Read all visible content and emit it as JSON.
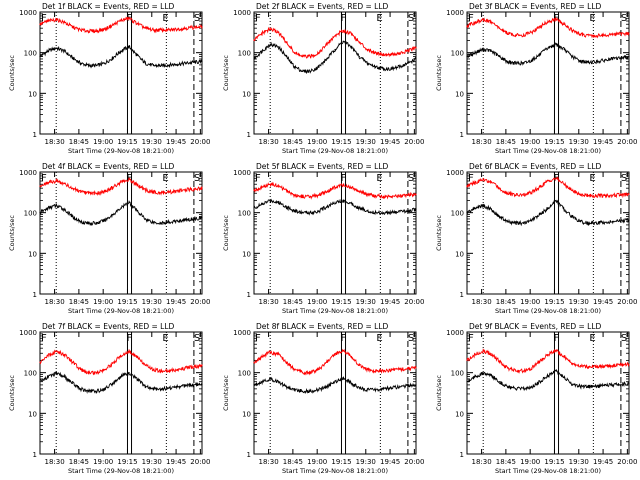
{
  "colors": {
    "events": "#000000",
    "lld": "#ff0000",
    "background": "#ffffff",
    "axes": "#000000"
  },
  "common": {
    "ylabel": "Counts/sec",
    "xlabel": "Start Time (29-Nov-08 18:21:00)",
    "x_tick_labels": [
      "18:30",
      "18:45",
      "19:00",
      "19:15",
      "19:30",
      "19:45",
      "20:00"
    ],
    "y_tick_labels": [
      "1",
      "10",
      "100",
      "1000"
    ],
    "marker_labels": {
      "first": "F",
      "second": "E",
      "third": "S"
    }
  },
  "chart_data": [
    {
      "type": "line",
      "title": "Det 1f BLACK = Events, RED = LLD",
      "x_unit": "minutes after 18:21:00",
      "xlim": [
        0,
        100
      ],
      "ylim": [
        1,
        1000
      ],
      "yscale": "log",
      "vertical_lines": {
        "dotted": [
          10,
          78
        ],
        "solid_pair": [
          54,
          56.5
        ],
        "dashed": 95
      },
      "x": [
        0,
        5,
        10,
        15,
        20,
        25,
        30,
        35,
        40,
        45,
        50,
        55,
        60,
        65,
        70,
        75,
        80,
        85,
        90,
        95,
        100
      ],
      "series": [
        {
          "name": "Events",
          "color": "#000000",
          "values": [
            80,
            110,
            130,
            110,
            75,
            55,
            48,
            48,
            55,
            75,
            110,
            140,
            85,
            55,
            48,
            48,
            50,
            52,
            55,
            58,
            60
          ]
        },
        {
          "name": "LLD",
          "color": "#ff0000",
          "values": [
            500,
            600,
            650,
            560,
            430,
            360,
            340,
            340,
            380,
            480,
            620,
            700,
            520,
            400,
            360,
            360,
            360,
            380,
            400,
            420,
            430
          ]
        }
      ]
    },
    {
      "type": "line",
      "title": "Det 2f BLACK = Events, RED = LLD",
      "x_unit": "minutes after 18:21:00",
      "xlim": [
        0,
        100
      ],
      "ylim": [
        1,
        1000
      ],
      "yscale": "log",
      "vertical_lines": {
        "dotted": [
          10,
          78
        ],
        "solid_pair": [
          54,
          56.5
        ],
        "dashed": 95
      },
      "x": [
        0,
        5,
        10,
        15,
        20,
        25,
        30,
        35,
        40,
        45,
        50,
        55,
        60,
        65,
        70,
        75,
        80,
        85,
        90,
        95,
        100
      ],
      "series": [
        {
          "name": "Events",
          "color": "#000000",
          "values": [
            70,
            110,
            160,
            140,
            80,
            45,
            35,
            35,
            45,
            70,
            120,
            190,
            140,
            80,
            55,
            45,
            40,
            40,
            45,
            55,
            70
          ]
        },
        {
          "name": "LLD",
          "color": "#ff0000",
          "values": [
            200,
            300,
            380,
            320,
            180,
            100,
            80,
            80,
            100,
            160,
            260,
            350,
            300,
            180,
            120,
            100,
            90,
            90,
            95,
            110,
            130
          ]
        }
      ]
    },
    {
      "type": "line",
      "title": "Det 3f BLACK = Events, RED = LLD",
      "x_unit": "minutes after 18:21:00",
      "xlim": [
        0,
        100
      ],
      "ylim": [
        1,
        1000
      ],
      "yscale": "log",
      "vertical_lines": {
        "dotted": [
          10,
          78
        ],
        "solid_pair": [
          54,
          56.5
        ],
        "dashed": 95
      },
      "x": [
        0,
        5,
        10,
        15,
        20,
        25,
        30,
        35,
        40,
        45,
        50,
        55,
        60,
        65,
        70,
        75,
        80,
        85,
        90,
        95,
        100
      ],
      "series": [
        {
          "name": "Events",
          "color": "#000000",
          "values": [
            80,
            100,
            120,
            110,
            80,
            60,
            55,
            55,
            65,
            90,
            130,
            160,
            120,
            80,
            62,
            58,
            60,
            65,
            70,
            75,
            80
          ]
        },
        {
          "name": "LLD",
          "color": "#ff0000",
          "values": [
            450,
            550,
            650,
            560,
            400,
            300,
            270,
            270,
            320,
            430,
            580,
            650,
            500,
            350,
            280,
            260,
            260,
            270,
            280,
            290,
            300
          ]
        }
      ]
    },
    {
      "type": "line",
      "title": "Det 4f BLACK = Events, RED = LLD",
      "x_unit": "minutes after 18:21:00",
      "xlim": [
        0,
        100
      ],
      "ylim": [
        1,
        1000
      ],
      "yscale": "log",
      "vertical_lines": {
        "dotted": [
          10,
          78
        ],
        "solid_pair": [
          54,
          56.5
        ],
        "dashed": 95
      },
      "x": [
        0,
        5,
        10,
        15,
        20,
        25,
        30,
        35,
        40,
        45,
        50,
        55,
        60,
        65,
        70,
        75,
        80,
        85,
        90,
        95,
        100
      ],
      "series": [
        {
          "name": "Events",
          "color": "#000000",
          "values": [
            100,
            130,
            150,
            120,
            80,
            60,
            55,
            55,
            65,
            90,
            130,
            180,
            110,
            70,
            58,
            55,
            58,
            62,
            66,
            70,
            75
          ]
        },
        {
          "name": "LLD",
          "color": "#ff0000",
          "values": [
            450,
            550,
            600,
            520,
            400,
            320,
            300,
            300,
            330,
            420,
            560,
            650,
            480,
            360,
            320,
            310,
            320,
            340,
            360,
            380,
            400
          ]
        }
      ]
    },
    {
      "type": "line",
      "title": "Det 5f BLACK = Events, RED = LLD",
      "x_unit": "minutes after 18:21:00",
      "xlim": [
        0,
        100
      ],
      "ylim": [
        1,
        1000
      ],
      "yscale": "log",
      "vertical_lines": {
        "dotted": [
          10,
          78
        ],
        "solid_pair": [
          54,
          56.5
        ],
        "dashed": 95
      },
      "x": [
        0,
        5,
        10,
        15,
        20,
        25,
        30,
        35,
        40,
        45,
        50,
        55,
        60,
        65,
        70,
        75,
        80,
        85,
        90,
        95,
        100
      ],
      "series": [
        {
          "name": "Events",
          "color": "#000000",
          "values": [
            130,
            160,
            200,
            180,
            140,
            110,
            100,
            100,
            110,
            140,
            180,
            200,
            170,
            130,
            110,
            100,
            100,
            100,
            105,
            110,
            120
          ]
        },
        {
          "name": "LLD",
          "color": "#ff0000",
          "values": [
            350,
            420,
            500,
            450,
            350,
            270,
            250,
            250,
            270,
            330,
            420,
            480,
            420,
            330,
            280,
            260,
            250,
            250,
            260,
            270,
            280
          ]
        }
      ]
    },
    {
      "type": "line",
      "title": "Det 6f BLACK = Events, RED = LLD",
      "x_unit": "minutes after 18:21:00",
      "xlim": [
        0,
        100
      ],
      "ylim": [
        1,
        1000
      ],
      "yscale": "log",
      "vertical_lines": {
        "dotted": [
          10,
          78
        ],
        "solid_pair": [
          54,
          56.5
        ],
        "dashed": 95
      },
      "x": [
        0,
        5,
        10,
        15,
        20,
        25,
        30,
        35,
        40,
        45,
        50,
        55,
        60,
        65,
        70,
        75,
        80,
        85,
        90,
        95,
        100
      ],
      "series": [
        {
          "name": "Events",
          "color": "#000000",
          "values": [
            100,
            130,
            150,
            120,
            80,
            60,
            55,
            55,
            65,
            90,
            130,
            200,
            120,
            80,
            60,
            55,
            55,
            58,
            60,
            62,
            65
          ]
        },
        {
          "name": "LLD",
          "color": "#ff0000",
          "values": [
            450,
            550,
            650,
            560,
            400,
            300,
            270,
            270,
            320,
            430,
            600,
            700,
            500,
            350,
            280,
            260,
            260,
            265,
            270,
            275,
            280
          ]
        }
      ]
    },
    {
      "type": "line",
      "title": "Det 7f BLACK = Events, RED = LLD",
      "x_unit": "minutes after 18:21:00",
      "xlim": [
        0,
        100
      ],
      "ylim": [
        1,
        1000
      ],
      "yscale": "log",
      "vertical_lines": {
        "dotted": [
          10,
          78
        ],
        "solid_pair": [
          54,
          56.5
        ],
        "dashed": 95
      },
      "x": [
        0,
        5,
        10,
        15,
        20,
        25,
        30,
        35,
        40,
        45,
        50,
        55,
        60,
        65,
        70,
        75,
        80,
        85,
        90,
        95,
        100
      ],
      "series": [
        {
          "name": "Events",
          "color": "#000000",
          "values": [
            60,
            80,
            95,
            80,
            55,
            40,
            35,
            35,
            40,
            55,
            80,
            100,
            70,
            45,
            40,
            40,
            42,
            45,
            48,
            50,
            52
          ]
        },
        {
          "name": "LLD",
          "color": "#ff0000",
          "values": [
            180,
            260,
            330,
            280,
            180,
            120,
            100,
            100,
            120,
            170,
            260,
            340,
            240,
            150,
            120,
            110,
            110,
            120,
            130,
            140,
            150
          ]
        }
      ]
    },
    {
      "type": "line",
      "title": "Det 8f BLACK = Events, RED = LLD",
      "x_unit": "minutes after 18:21:00",
      "xlim": [
        0,
        100
      ],
      "ylim": [
        1,
        1000
      ],
      "yscale": "log",
      "vertical_lines": {
        "dotted": [
          10,
          78
        ],
        "solid_pair": [
          54,
          56.5
        ],
        "dashed": 95
      },
      "x": [
        0,
        5,
        10,
        15,
        20,
        25,
        30,
        35,
        40,
        45,
        50,
        55,
        60,
        65,
        70,
        75,
        80,
        85,
        90,
        95,
        100
      ],
      "series": [
        {
          "name": "Events",
          "color": "#000000",
          "values": [
            50,
            60,
            70,
            60,
            45,
            38,
            35,
            35,
            38,
            45,
            60,
            75,
            55,
            42,
            38,
            38,
            40,
            42,
            45,
            48,
            50
          ]
        },
        {
          "name": "LLD",
          "color": "#ff0000",
          "values": [
            180,
            250,
            320,
            280,
            180,
            120,
            100,
            100,
            120,
            180,
            280,
            350,
            250,
            150,
            120,
            110,
            110,
            115,
            120,
            125,
            130
          ]
        }
      ]
    },
    {
      "type": "line",
      "title": "Det 9f BLACK = Events, RED = LLD",
      "x_unit": "minutes after 18:21:00",
      "xlim": [
        0,
        100
      ],
      "ylim": [
        1,
        1000
      ],
      "yscale": "log",
      "vertical_lines": {
        "dotted": [
          10,
          78
        ],
        "solid_pair": [
          54,
          56.5
        ],
        "dashed": 95
      },
      "x": [
        0,
        5,
        10,
        15,
        20,
        25,
        30,
        35,
        40,
        45,
        50,
        55,
        60,
        65,
        70,
        75,
        80,
        85,
        90,
        95,
        100
      ],
      "series": [
        {
          "name": "Events",
          "color": "#000000",
          "values": [
            60,
            80,
            95,
            85,
            60,
            45,
            40,
            40,
            45,
            60,
            85,
            110,
            75,
            52,
            46,
            45,
            46,
            48,
            50,
            52,
            55
          ]
        },
        {
          "name": "LLD",
          "color": "#ff0000",
          "values": [
            200,
            280,
            340,
            290,
            190,
            130,
            110,
            110,
            130,
            190,
            280,
            350,
            250,
            170,
            150,
            140,
            140,
            145,
            150,
            155,
            160
          ]
        }
      ]
    }
  ]
}
